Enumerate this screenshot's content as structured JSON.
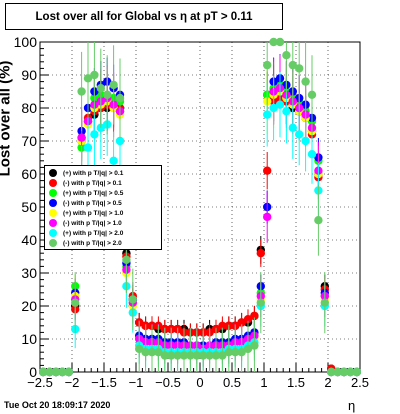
{
  "title": "Lost over all for Global vs   η at pT > 0.11",
  "timestamp": "Tue Oct 20 18:09:17 2020",
  "chart_data": {
    "type": "scatter",
    "xlabel": "η",
    "ylabel": "Lost over all (%)",
    "xlim": [
      -2.5,
      2.5
    ],
    "ylim": [
      0,
      100
    ],
    "x_ticks": [
      "−2.5",
      "−2",
      "−1.5",
      "−1",
      "−0.5",
      "0",
      "0.5",
      "1",
      "1.5",
      "2",
      "2.5"
    ],
    "y_ticks": [
      "0",
      "10",
      "20",
      "30",
      "40",
      "50",
      "60",
      "70",
      "80",
      "90",
      "100"
    ],
    "grid": true,
    "legend_position": "left-middle",
    "x": [
      -2.45,
      -2.35,
      -2.25,
      -2.15,
      -2.05,
      -1.95,
      -1.85,
      -1.75,
      -1.65,
      -1.55,
      -1.45,
      -1.35,
      -1.25,
      -1.15,
      -1.05,
      -0.95,
      -0.85,
      -0.75,
      -0.65,
      -0.55,
      -0.45,
      -0.35,
      -0.25,
      -0.15,
      -0.05,
      0.05,
      0.15,
      0.25,
      0.35,
      0.45,
      0.55,
      0.65,
      0.75,
      0.85,
      0.95,
      1.05,
      1.15,
      1.25,
      1.35,
      1.45,
      1.55,
      1.65,
      1.75,
      1.85,
      1.95,
      2.05,
      2.15,
      2.25,
      2.35,
      2.45
    ],
    "series": [
      {
        "name": "(+) with p T/|q| > 0.1",
        "color": "#000000",
        "values": [
          0,
          0,
          0,
          0,
          0,
          20,
          70,
          76,
          78,
          80,
          80,
          81,
          79,
          36,
          22,
          15,
          14,
          14,
          13,
          13,
          13,
          13,
          13,
          12,
          12,
          12,
          13,
          13,
          13,
          14,
          14,
          15,
          15,
          17,
          37,
          84,
          83,
          83,
          82,
          80,
          79,
          77,
          73,
          60,
          26,
          1,
          0,
          0,
          0,
          0
        ]
      },
      {
        "name": "(-) with p T/|q| > 0.1",
        "color": "#ff0000",
        "values": [
          0,
          0,
          0,
          0,
          0,
          19,
          71,
          77,
          79,
          80,
          81,
          80,
          80,
          35,
          23,
          15,
          14,
          14,
          14,
          13,
          13,
          13,
          12,
          12,
          12,
          12,
          12,
          13,
          14,
          14,
          14,
          15,
          16,
          17,
          36,
          61,
          82,
          83,
          82,
          81,
          79,
          77,
          72,
          59,
          25,
          1,
          0,
          0,
          0,
          0
        ]
      },
      {
        "name": "(+) with p T/|q| > 0.5",
        "color": "#00ff00",
        "values": [
          0,
          0,
          0,
          0,
          0,
          26,
          68,
          76,
          83,
          84,
          84,
          83,
          82,
          32,
          21,
          11,
          10,
          10,
          9,
          9,
          9,
          8,
          8,
          8,
          8,
          8,
          8,
          8,
          8,
          9,
          9,
          9,
          10,
          11,
          24,
          84,
          86,
          87,
          85,
          83,
          82,
          79,
          76,
          64,
          23,
          0,
          0,
          0,
          0,
          0
        ]
      },
      {
        "name": "(-) with p T/|q| > 0.5",
        "color": "#0000ff",
        "values": [
          0,
          0,
          0,
          0,
          0,
          24,
          73,
          80,
          85,
          87,
          88,
          86,
          84,
          33,
          22,
          11,
          10,
          10,
          10,
          9,
          9,
          9,
          9,
          8,
          8,
          8,
          8,
          9,
          9,
          9,
          10,
          10,
          11,
          12,
          26,
          50,
          88,
          89,
          87,
          85,
          83,
          81,
          77,
          65,
          24,
          0,
          0,
          0,
          0,
          0
        ]
      },
      {
        "name": "(+) with p T/|q| > 1.0",
        "color": "#ffff00",
        "values": [
          0,
          0,
          0,
          0,
          0,
          23,
          70,
          75,
          80,
          81,
          82,
          80,
          78,
          30,
          20,
          10,
          9,
          9,
          8,
          8,
          8,
          8,
          8,
          7,
          7,
          7,
          7,
          8,
          8,
          8,
          8,
          9,
          9,
          10,
          22,
          82,
          84,
          85,
          83,
          81,
          79,
          77,
          73,
          60,
          22,
          0,
          0,
          0,
          0,
          0
        ]
      },
      {
        "name": "(-) with p T/|q| > 1.0",
        "color": "#ff00ff",
        "values": [
          0,
          0,
          0,
          0,
          0,
          22,
          71,
          76,
          81,
          82,
          83,
          81,
          79,
          31,
          21,
          10,
          9,
          9,
          9,
          8,
          8,
          8,
          8,
          8,
          8,
          7,
          8,
          8,
          8,
          8,
          9,
          9,
          10,
          11,
          23,
          47,
          85,
          86,
          84,
          82,
          80,
          78,
          74,
          61,
          23,
          0,
          0,
          0,
          0,
          0
        ]
      },
      {
        "name": "(+) with p T/|q| > 2.0",
        "color": "#00ffff",
        "values": [
          0,
          0,
          0,
          0,
          0,
          13,
          60,
          68,
          72,
          74,
          75,
          64,
          70,
          26,
          18,
          8,
          7,
          7,
          7,
          6,
          6,
          6,
          6,
          6,
          6,
          6,
          6,
          6,
          6,
          7,
          7,
          7,
          8,
          9,
          20,
          78,
          80,
          81,
          79,
          74,
          72,
          70,
          66,
          55,
          20,
          0,
          0,
          0,
          0,
          0
        ]
      },
      {
        "name": "(-) with p T/|q| > 2.0",
        "color": "#66cc66",
        "values": [
          0,
          0,
          0,
          0,
          0,
          21,
          85,
          89,
          90,
          86,
          84,
          87,
          83,
          34,
          22,
          7,
          6,
          6,
          6,
          5,
          5,
          5,
          5,
          5,
          5,
          5,
          5,
          5,
          5,
          6,
          6,
          6,
          7,
          8,
          21,
          93,
          100,
          100,
          96,
          93,
          92,
          88,
          84,
          46,
          21,
          0,
          0,
          0,
          0,
          0
        ]
      }
    ]
  }
}
